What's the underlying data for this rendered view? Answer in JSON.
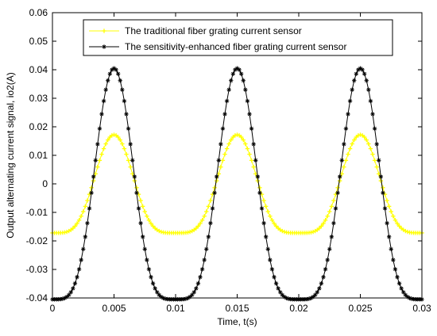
{
  "chart_data": {
    "type": "line",
    "title": "",
    "xlabel": "Time, t(s)",
    "ylabel": "Output alternating current signal, io2(A)",
    "xlim": [
      0,
      0.03
    ],
    "ylim": [
      -0.04,
      0.06
    ],
    "xticks": [
      0,
      0.005,
      0.01,
      0.015,
      0.02,
      0.025,
      0.03
    ],
    "xtick_labels": [
      "0",
      "0.005",
      "0.01",
      "0.015",
      "0.02",
      "0.025",
      "0.03"
    ],
    "yticks": [
      -0.04,
      -0.03,
      -0.02,
      -0.01,
      0,
      0.01,
      0.02,
      0.03,
      0.04,
      0.05,
      0.06
    ],
    "ytick_labels": [
      "-0.04",
      "-0.03",
      "-0.02",
      "-0.01",
      "0",
      "0.01",
      "0.02",
      "0.03",
      "0.04",
      "0.05",
      "0.06"
    ],
    "grid": false,
    "legend_position": "top",
    "period": 0.01,
    "peak_times": [
      0.005,
      0.015,
      0.025
    ],
    "series": [
      {
        "name": "The traditional fiber grating current sensor",
        "color": "#ffff00",
        "marker": "plus",
        "max": 0.0172,
        "min": -0.0172
      },
      {
        "name": "The sensitivity-enhanced fiber grating current sensor",
        "color": "#000000",
        "marker": "star",
        "max": 0.0405,
        "min": -0.0405
      }
    ],
    "samples_per_series": 181
  }
}
